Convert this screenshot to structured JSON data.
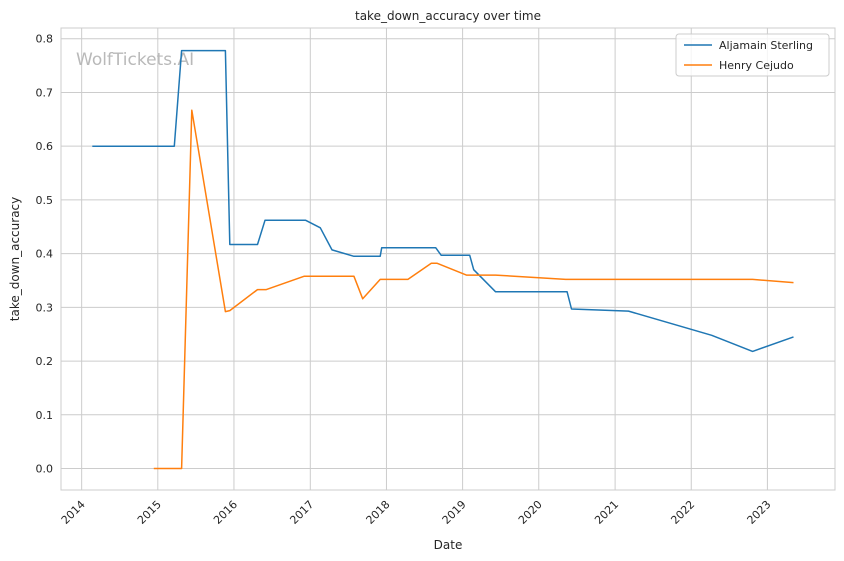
{
  "chart_data": {
    "type": "line",
    "title": "take_down_accuracy over time",
    "xlabel": "Date",
    "ylabel": "take_down_accuracy",
    "watermark": "WolfTickets.AI",
    "x_ticks": [
      "2014",
      "2015",
      "2016",
      "2017",
      "2018",
      "2019",
      "2020",
      "2021",
      "2022",
      "2023"
    ],
    "y_ticks": [
      "0.0",
      "0.1",
      "0.2",
      "0.3",
      "0.4",
      "0.5",
      "0.6",
      "0.7",
      "0.8"
    ],
    "xlim": [
      "2013-09-24",
      "2023-11-21"
    ],
    "ylim": [
      -0.04,
      0.82
    ],
    "grid": true,
    "legend_position": "top-right",
    "series": [
      {
        "name": "Aljamain Sterling",
        "color": "#1f77b4",
        "points": [
          [
            "2014-02-21",
            0.6
          ],
          [
            "2015-03-21",
            0.6
          ],
          [
            "2015-04-25",
            0.778
          ],
          [
            "2015-11-21",
            0.778
          ],
          [
            "2015-12-12",
            0.417
          ],
          [
            "2016-04-23",
            0.417
          ],
          [
            "2016-05-29",
            0.462
          ],
          [
            "2016-12-10",
            0.462
          ],
          [
            "2017-02-18",
            0.448
          ],
          [
            "2017-04-15",
            0.407
          ],
          [
            "2017-07-29",
            0.395
          ],
          [
            "2017-12-02",
            0.395
          ],
          [
            "2017-12-09",
            0.411
          ],
          [
            "2018-08-25",
            0.411
          ],
          [
            "2018-09-20",
            0.397
          ],
          [
            "2019-02-04",
            0.397
          ],
          [
            "2019-02-23",
            0.37
          ],
          [
            "2019-06-08",
            0.329
          ],
          [
            "2020-05-16",
            0.329
          ],
          [
            "2020-06-06",
            0.297
          ],
          [
            "2021-03-06",
            0.293
          ],
          [
            "2022-04-09",
            0.248
          ],
          [
            "2022-10-22",
            0.218
          ],
          [
            "2023-05-06",
            0.245
          ]
        ]
      },
      {
        "name": "Henry Cejudo",
        "color": "#ff7f0e",
        "points": [
          [
            "2014-12-13",
            0.0
          ],
          [
            "2015-04-25",
            0.0
          ],
          [
            "2015-06-13",
            0.667
          ],
          [
            "2015-11-21",
            0.292
          ],
          [
            "2015-12-12",
            0.294
          ],
          [
            "2016-04-23",
            0.333
          ],
          [
            "2016-06-04",
            0.333
          ],
          [
            "2016-12-03",
            0.358
          ],
          [
            "2017-07-29",
            0.358
          ],
          [
            "2017-09-09",
            0.316
          ],
          [
            "2017-12-02",
            0.352
          ],
          [
            "2018-04-14",
            0.352
          ],
          [
            "2018-08-04",
            0.382
          ],
          [
            "2018-09-01",
            0.382
          ],
          [
            "2019-01-19",
            0.36
          ],
          [
            "2019-06-08",
            0.36
          ],
          [
            "2020-05-09",
            0.352
          ],
          [
            "2022-10-22",
            0.352
          ],
          [
            "2023-05-06",
            0.346
          ]
        ]
      }
    ]
  }
}
